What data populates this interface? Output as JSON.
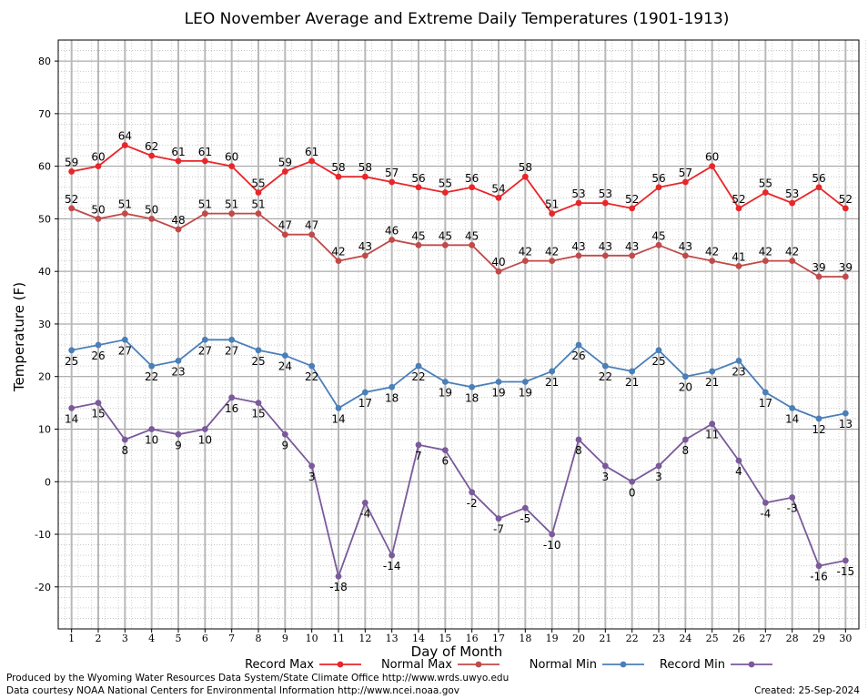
{
  "chart_data": {
    "type": "line",
    "title": "LEO November Average and Extreme Daily Temperatures (1901-1913)",
    "xlabel": "Day of Month",
    "ylabel": "Temperature (F)",
    "x": [
      1,
      2,
      3,
      4,
      5,
      6,
      7,
      8,
      9,
      10,
      11,
      12,
      13,
      14,
      15,
      16,
      17,
      18,
      19,
      20,
      21,
      22,
      23,
      24,
      25,
      26,
      27,
      28,
      29,
      30
    ],
    "ylim": [
      -28,
      84
    ],
    "yticks": [
      -20,
      -10,
      0,
      10,
      20,
      30,
      40,
      50,
      60,
      70,
      80
    ],
    "grid": true,
    "legend_position": "bottom",
    "series": [
      {
        "name": "Record Max",
        "color": "#e8262a",
        "values": [
          59,
          60,
          64,
          62,
          61,
          61,
          60,
          55,
          59,
          61,
          58,
          58,
          57,
          56,
          55,
          56,
          54,
          58,
          51,
          53,
          53,
          52,
          56,
          57,
          60,
          52,
          55,
          53,
          56,
          52
        ]
      },
      {
        "name": "Normal Max",
        "color": "#c04a4a",
        "values": [
          52,
          50,
          51,
          50,
          48,
          51,
          51,
          51,
          47,
          47,
          42,
          43,
          46,
          45,
          45,
          45,
          40,
          42,
          42,
          43,
          43,
          43,
          45,
          43,
          42,
          41,
          42,
          42,
          39,
          39
        ]
      },
      {
        "name": "Normal Min",
        "color": "#4a7fb8",
        "values": [
          25,
          26,
          27,
          22,
          23,
          27,
          27,
          25,
          24,
          22,
          14,
          17,
          18,
          22,
          19,
          18,
          19,
          19,
          21,
          26,
          22,
          21,
          25,
          20,
          21,
          23,
          17,
          14,
          12,
          13
        ]
      },
      {
        "name": "Record Min",
        "color": "#7a5a9a",
        "values": [
          14,
          15,
          8,
          10,
          9,
          10,
          16,
          15,
          9,
          3,
          -18,
          -4,
          -14,
          7,
          6,
          -2,
          -7,
          -5,
          -10,
          8,
          3,
          0,
          3,
          8,
          11,
          4,
          -4,
          -3,
          -16,
          -15
        ]
      }
    ]
  },
  "footer": {
    "line1": "Produced by the Wyoming Water Resources Data System/State Climate Office http://www.wrds.uwyo.edu",
    "line2": "Data courtesy NOAA National Centers for Environmental Information http://www.ncei.noaa.gov",
    "created": "Created:  25-Sep-2024"
  }
}
